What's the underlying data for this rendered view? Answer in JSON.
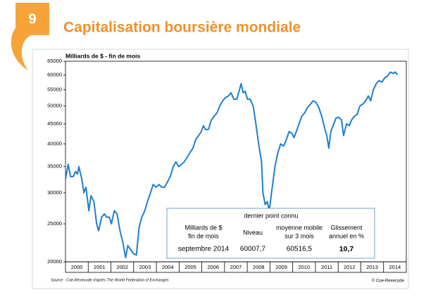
{
  "badge": "9",
  "chart_data": {
    "type": "line",
    "title": "Capitalisation boursière mondiale",
    "ylabel": "Milliards de $ - fin de mois",
    "yscale": "log",
    "ylim": [
      20000,
      65000
    ],
    "yticks": [
      20000,
      25000,
      30000,
      35000,
      40000,
      45000,
      50000,
      55000,
      60000,
      65000
    ],
    "xlim": [
      2000,
      2015
    ],
    "categories": [
      "2000",
      "2001",
      "2002",
      "2003",
      "2004",
      "2005",
      "2006",
      "2007",
      "2008",
      "2009",
      "2010",
      "2011",
      "2012",
      "2013",
      "2014"
    ],
    "series": [
      {
        "color": "#1f7fd0",
        "x": [
          2000.0,
          2000.12,
          2000.22,
          2000.34,
          2000.44,
          2000.53,
          2000.59,
          2000.72,
          2000.81,
          2000.9,
          2001.03,
          2001.12,
          2001.25,
          2001.37,
          2001.46,
          2001.59,
          2001.71,
          2001.81,
          2001.93,
          2002.02,
          2002.15,
          2002.27,
          2002.4,
          2002.52,
          2002.65,
          2002.74,
          2002.87,
          2002.99,
          2003.12,
          2003.24,
          2003.36,
          2003.49,
          2003.61,
          2003.74,
          2003.86,
          2003.99,
          2004.11,
          2004.24,
          2004.36,
          2004.49,
          2004.61,
          2004.74,
          2004.86,
          2004.98,
          2005.11,
          2005.23,
          2005.36,
          2005.48,
          2005.61,
          2005.73,
          2005.86,
          2005.98,
          2006.07,
          2006.17,
          2006.29,
          2006.42,
          2006.54,
          2006.67,
          2006.79,
          2006.92,
          2007.04,
          2007.17,
          2007.29,
          2007.41,
          2007.54,
          2007.66,
          2007.73,
          2007.82,
          2007.91,
          2008.01,
          2008.13,
          2008.26,
          2008.38,
          2008.5,
          2008.63,
          2008.69,
          2008.79,
          2008.88,
          2008.97,
          2009.1,
          2009.22,
          2009.35,
          2009.47,
          2009.6,
          2009.72,
          2009.84,
          2009.97,
          2010.06,
          2010.16,
          2010.28,
          2010.4,
          2010.53,
          2010.65,
          2010.78,
          2010.9,
          2011.03,
          2011.15,
          2011.28,
          2011.4,
          2011.5,
          2011.59,
          2011.68,
          2011.78,
          2011.9,
          2012.02,
          2012.15,
          2012.24,
          2012.37,
          2012.49,
          2012.59,
          2012.71,
          2012.83,
          2012.96,
          2013.08,
          2013.21,
          2013.33,
          2013.43,
          2013.55,
          2013.68,
          2013.8,
          2013.93,
          2014.05,
          2014.17,
          2014.3,
          2014.42,
          2014.52,
          2014.61
        ],
        "values": [
          32500,
          35500,
          33000,
          33000,
          34000,
          33500,
          35000,
          32500,
          30000,
          31000,
          27000,
          29500,
          28500,
          25000,
          24000,
          26000,
          26500,
          26000,
          26000,
          25000,
          27000,
          26500,
          24000,
          22500,
          20500,
          22000,
          21500,
          21000,
          20800,
          24500,
          26000,
          27000,
          28500,
          30000,
          31500,
          31000,
          31500,
          31000,
          31000,
          32000,
          33000,
          35000,
          36000,
          35000,
          35500,
          36000,
          37000,
          38000,
          39000,
          41000,
          42000,
          43000,
          44500,
          43500,
          43500,
          46000,
          47000,
          48000,
          50000,
          51500,
          52500,
          53000,
          54000,
          52000,
          52000,
          55000,
          57000,
          54000,
          54500,
          52000,
          52000,
          50000,
          45000,
          40000,
          36000,
          30000,
          28000,
          28500,
          27000,
          31000,
          35000,
          38000,
          40000,
          39500,
          41000,
          43000,
          42500,
          41500,
          43000,
          45000,
          47000,
          48000,
          49500,
          50500,
          51500,
          51000,
          49500,
          47000,
          44000,
          42000,
          39000,
          43000,
          44500,
          46500,
          46800,
          46000,
          42000,
          45000,
          44500,
          46000,
          47000,
          47500,
          50000,
          50500,
          51500,
          53000,
          51500,
          55000,
          57000,
          58000,
          57500,
          59000,
          59500,
          61000,
          60500,
          61000,
          60000
        ]
      }
    ],
    "source": "Source : Coe-Rexecode d'après The World Federation of Exchanges",
    "credit": "© Coe-Rexecode"
  },
  "table": {
    "caption": "dernier point connu",
    "header": [
      [
        "Milliards de $",
        "fin de mois"
      ],
      [
        "Niveau"
      ],
      [
        "moyenne mobile",
        "sur 3 mois"
      ],
      [
        "Glissement",
        "annuel en %"
      ]
    ],
    "row": [
      "septembre 2014",
      "60007,7",
      "60516,5",
      "10,7"
    ]
  }
}
